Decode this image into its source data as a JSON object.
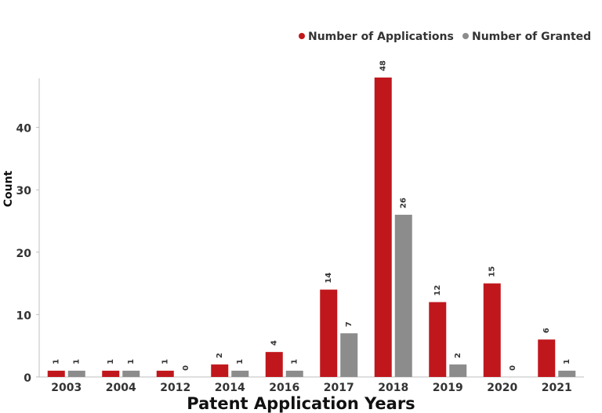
{
  "chart_data": {
    "type": "bar",
    "categories": [
      "2003",
      "2004",
      "2012",
      "2014",
      "2016",
      "2017",
      "2018",
      "2019",
      "2020",
      "2021"
    ],
    "series": [
      {
        "name": "Number of Applications",
        "values": [
          1,
          1,
          1,
          2,
          4,
          14,
          48,
          12,
          15,
          6
        ],
        "color": "#c0171c"
      },
      {
        "name": "Number of Granted",
        "values": [
          1,
          1,
          0,
          1,
          1,
          7,
          26,
          2,
          0,
          1
        ],
        "color": "#8c8c8c"
      }
    ],
    "title": "",
    "xlabel": "Patent Application Years",
    "ylabel": "Count",
    "ylim": [
      0,
      48
    ],
    "yticks": [
      0,
      10,
      20,
      30,
      40
    ],
    "legend_position": "top-right",
    "grid": false,
    "data_labels": true
  }
}
